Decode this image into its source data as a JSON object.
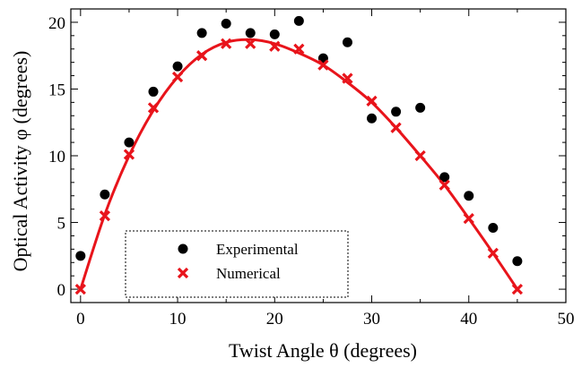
{
  "chart_data": {
    "type": "scatter",
    "title": "",
    "xlabel": "Twist Angle θ (degrees)",
    "ylabel": "Optical Activity φ (degrees)",
    "xlim": [
      -1,
      50
    ],
    "ylim": [
      -1,
      21
    ],
    "x_ticks": [
      "0",
      "10",
      "20",
      "30",
      "40",
      "50"
    ],
    "y_ticks": [
      "0",
      "5",
      "10",
      "15",
      "20"
    ],
    "grid": false,
    "legend_position": "bottom-left",
    "series": [
      {
        "name": "Experimental",
        "marker": "circle",
        "color": "#000000",
        "x": [
          0,
          2.5,
          5,
          7.5,
          10,
          12.5,
          15,
          17.5,
          20,
          22.5,
          25,
          27.5,
          30,
          32.5,
          35,
          37.5,
          40,
          42.5,
          45
        ],
        "y": [
          2.5,
          7.1,
          11.0,
          14.8,
          16.7,
          19.2,
          19.9,
          19.2,
          19.1,
          20.1,
          17.3,
          18.5,
          12.8,
          13.3,
          13.6,
          8.4,
          7.0,
          4.6,
          2.1
        ]
      },
      {
        "name": "Numerical",
        "marker": "x",
        "color": "#e8141b",
        "x": [
          0,
          2.5,
          5,
          7.5,
          10,
          12.5,
          15,
          17.5,
          20,
          22.5,
          25,
          27.5,
          30,
          32.5,
          35,
          37.5,
          40,
          42.5,
          45
        ],
        "y": [
          0,
          5.5,
          10.1,
          13.6,
          15.9,
          17.5,
          18.4,
          18.4,
          18.2,
          18.0,
          16.8,
          15.8,
          14.1,
          12.1,
          10.0,
          7.8,
          5.3,
          2.7,
          0
        ]
      }
    ],
    "fit_curve": {
      "color": "#e8141b",
      "x": [
        0,
        2.5,
        5,
        7.5,
        10,
        12.5,
        15,
        17.5,
        20,
        22.5,
        25,
        27.5,
        30,
        32.5,
        35,
        37.5,
        40,
        42.5,
        45
      ],
      "y": [
        0,
        5.6,
        10.0,
        13.4,
        15.9,
        17.6,
        18.5,
        18.7,
        18.4,
        17.7,
        16.8,
        15.5,
        14.0,
        12.1,
        10.0,
        7.8,
        5.3,
        2.7,
        0
      ]
    }
  }
}
